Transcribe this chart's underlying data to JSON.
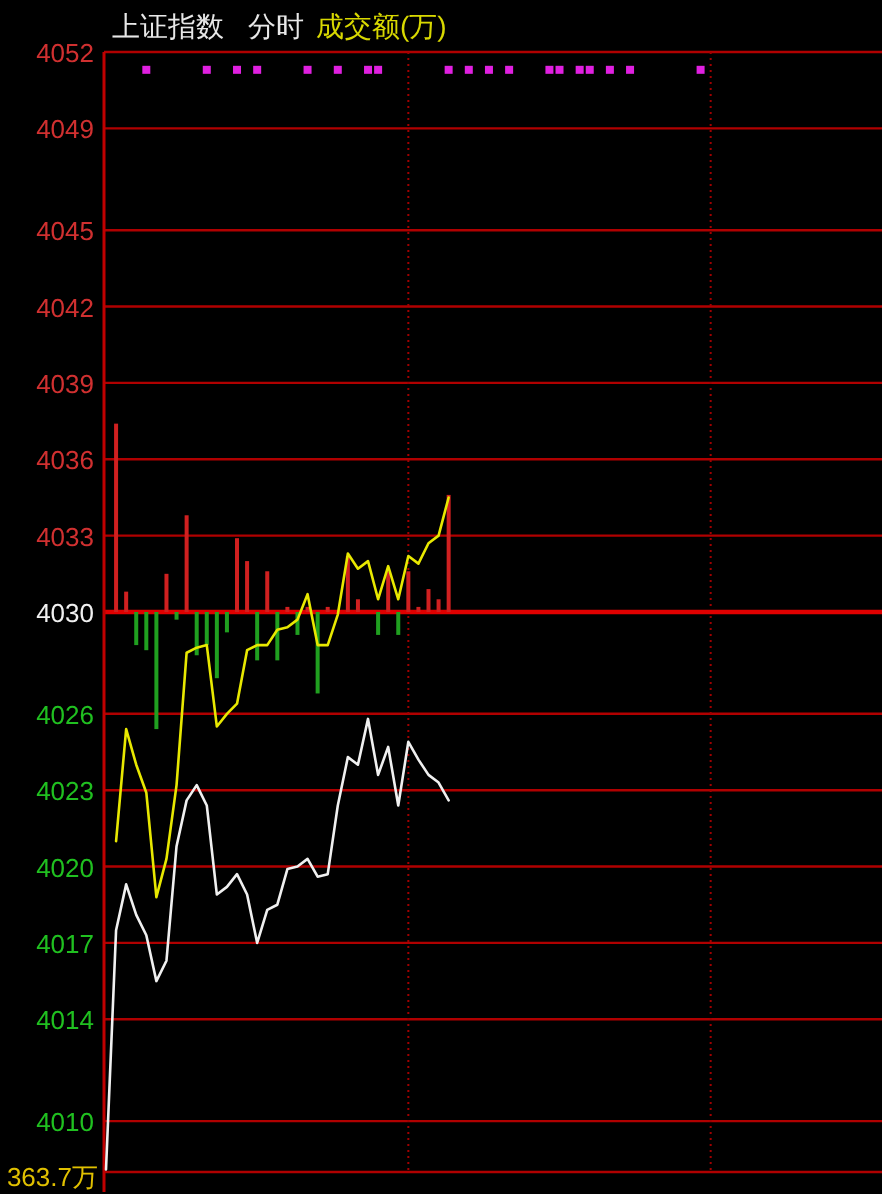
{
  "chart_data": {
    "type": "line",
    "title": "上证指数",
    "subtitle": "分时",
    "annotations": [
      "成交额(万)",
      "363.7万"
    ],
    "categories": [
      null,
      null,
      null,
      null,
      null,
      null,
      null,
      null,
      null,
      null,
      null,
      null,
      null,
      null,
      null,
      null,
      null,
      null,
      null,
      null,
      null,
      null,
      null,
      null,
      null,
      null,
      null,
      null,
      null,
      null,
      null,
      null,
      null,
      null,
      null,
      null,
      null,
      null,
      null,
      null,
      null,
      null,
      null,
      null,
      null,
      null,
      null,
      null,
      null,
      null,
      null,
      null,
      null,
      null,
      null,
      null,
      null,
      null,
      null,
      null,
      null,
      null,
      null,
      null,
      null,
      null,
      null,
      null,
      null,
      null,
      null,
      null,
      null,
      null,
      null,
      null,
      null,
      null
    ],
    "ylim": [
      4008,
      4052
    ],
    "yticks": [
      4052,
      4049,
      4045,
      4042,
      4039,
      4036,
      4033,
      4030,
      4026,
      4023,
      4020,
      4017,
      4014,
      4010,
      {
        "value": 4008,
        "label": null
      }
    ],
    "grid": true,
    "ref_lines": [
      {
        "axis": "y",
        "value": 4030,
        "color": "#e00000"
      }
    ],
    "series": [
      {
        "type": "bar",
        "base": [
          null,
          4030,
          4030,
          4030,
          4030,
          4030,
          4030,
          4030,
          4030,
          4030,
          4030,
          4030,
          4030,
          4030,
          4030,
          4030,
          4030,
          4030,
          4030,
          4030,
          4030,
          4030,
          4030,
          null,
          4030,
          4030,
          null,
          4030,
          4030,
          4030,
          4030,
          4030,
          4030,
          4030,
          4030,
          null,
          null,
          null,
          null,
          null,
          null,
          null,
          null,
          null,
          null,
          null,
          null,
          null,
          null,
          null,
          null,
          null,
          null,
          null,
          null,
          null,
          null,
          null,
          null,
          null,
          null,
          null,
          null,
          null,
          null,
          null,
          null,
          null,
          null,
          null,
          null,
          null,
          null,
          null,
          null,
          null,
          null,
          null
        ],
        "values": [
          null,
          7.4,
          0.8,
          -1.3,
          -1.5,
          -4.6,
          1.5,
          -0.3,
          3.8,
          -1.7,
          -1.3,
          -2.6,
          -0.8,
          2.9,
          2.0,
          -1.9,
          1.6,
          -1.9,
          0.2,
          -0.9,
          0.2,
          -3.2,
          0.2,
          null,
          2.2,
          0.5,
          null,
          -0.9,
          1.6,
          -0.9,
          1.6,
          0.2,
          0.9,
          0.5,
          4.6,
          null,
          null,
          null,
          null,
          null,
          null,
          null,
          null,
          null,
          null,
          null,
          null,
          null,
          null,
          null,
          null,
          null,
          null,
          null,
          null,
          null,
          null,
          null,
          null,
          null,
          null,
          null,
          null,
          null,
          null,
          null,
          null,
          null,
          null,
          null,
          null,
          null,
          null,
          null,
          null,
          null,
          null,
          null
        ],
        "colors": [
          null,
          "#d02020",
          "#d02020",
          "#20a020",
          "#20a020",
          "#20a020",
          "#d02020",
          "#20a020",
          "#d02020",
          "#20a020",
          "#20a020",
          "#20a020",
          "#20a020",
          "#d02020",
          "#d02020",
          "#20a020",
          "#d02020",
          "#20a020",
          "#d02020",
          "#20a020",
          "#d02020",
          "#20a020",
          "#d02020",
          null,
          "#d02020",
          "#d02020",
          null,
          "#20a020",
          "#d02020",
          "#20a020",
          "#d02020",
          "#d02020",
          "#d02020",
          "#d02020",
          "#d02020",
          null,
          null,
          null,
          null,
          null,
          null,
          null,
          null,
          null,
          null,
          null,
          null,
          null,
          null,
          null,
          null,
          null,
          null,
          null,
          null,
          null,
          null,
          null,
          null,
          null,
          null,
          null,
          null,
          null,
          null,
          null,
          null,
          null,
          null,
          null,
          null,
          null,
          null,
          null,
          null,
          null,
          null,
          null
        ]
      },
      {
        "color": "#f0f0f0",
        "line_style": "solid",
        "values": [
          4008.1,
          4017.5,
          4019.3,
          4018.1,
          4017.3,
          4015.5,
          4016.3,
          4020.8,
          4022.6,
          4023.2,
          4022.4,
          4018.9,
          4019.2,
          4019.7,
          4018.9,
          4017.0,
          4018.3,
          4018.5,
          4019.9,
          4020.0,
          4020.3,
          4019.6,
          4019.7,
          4022.4,
          4024.3,
          4024.0,
          4025.8,
          4023.6,
          4024.7,
          4022.4,
          4024.9,
          4024.2,
          4023.6,
          4023.3,
          4022.6,
          null,
          null,
          null,
          null,
          null,
          null,
          null,
          null,
          null,
          null,
          null,
          null,
          null,
          null,
          null,
          null,
          null,
          null,
          null,
          null,
          null,
          null,
          null,
          null,
          null,
          null,
          null,
          null,
          null,
          null,
          null,
          null,
          null,
          null,
          null,
          null,
          null,
          null,
          null,
          null,
          null,
          null,
          null
        ]
      },
      {
        "color": "#e8e800",
        "line_style": "solid",
        "values": [
          null,
          4021.0,
          4025.4,
          4024.0,
          4022.9,
          4018.8,
          4020.3,
          4023.2,
          4028.4,
          4028.6,
          4028.7,
          4025.5,
          4026.0,
          4026.4,
          4028.5,
          4028.7,
          4028.7,
          4029.3,
          4029.4,
          4029.7,
          4030.7,
          4028.7,
          4028.7,
          4029.9,
          4032.3,
          4031.7,
          4032.0,
          4030.5,
          4031.8,
          4030.5,
          4032.2,
          4031.9,
          4032.7,
          4033.0,
          4034.5,
          null,
          null,
          null,
          null,
          null,
          null,
          null,
          null,
          null,
          null,
          null,
          null,
          null,
          null,
          null,
          null,
          null,
          null,
          null,
          null,
          null,
          null,
          null,
          null,
          null,
          null,
          null,
          null,
          null,
          null,
          null,
          null,
          null,
          null,
          null,
          null,
          null,
          null,
          null,
          null,
          null,
          null,
          null
        ]
      },
      {
        "type": "scatter",
        "color": "#e020e0",
        "marker": "square",
        "values": [
          null,
          null,
          null,
          null,
          4051.3,
          null,
          null,
          null,
          null,
          null,
          4051.3,
          null,
          null,
          4051.3,
          null,
          4051.3,
          null,
          null,
          null,
          null,
          4051.3,
          null,
          null,
          4051.3,
          null,
          null,
          4051.3,
          4051.3,
          null,
          null,
          null,
          null,
          null,
          null,
          4051.3,
          null,
          4051.3,
          null,
          4051.3,
          null,
          4051.3,
          null,
          null,
          null,
          4051.3,
          4051.3,
          null,
          4051.3,
          4051.3,
          null,
          4051.3,
          null,
          4051.3,
          null,
          null,
          null,
          null,
          null,
          null,
          4051.3,
          null,
          null,
          null,
          null,
          null,
          null,
          null,
          null,
          null,
          null,
          null,
          null,
          null,
          null,
          null,
          null,
          null,
          null
        ]
      }
    ]
  }
}
